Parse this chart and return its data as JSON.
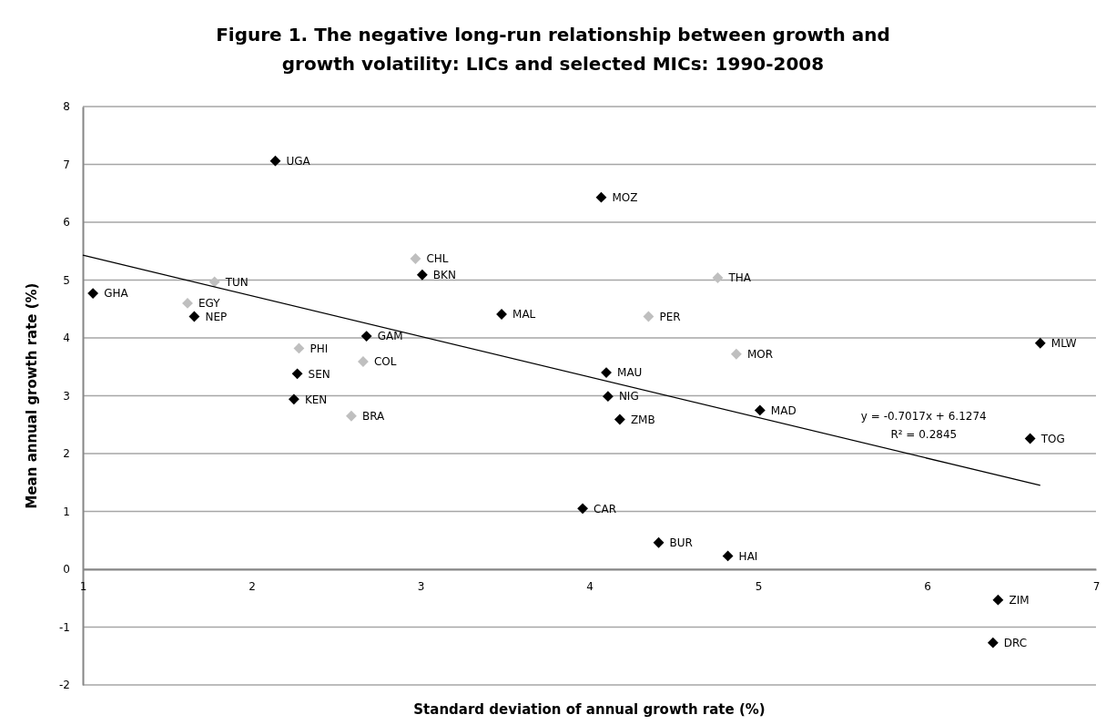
{
  "chart_data": {
    "type": "scatter",
    "title": "Figure 1. The negative long-run relationship between growth and growth volatility: LICs and selected MICs: 1990-2008",
    "xlabel": "Standard deviation of annual growth rate (%)",
    "ylabel": "Mean annual growth rate (%)",
    "xlim": [
      1,
      7
    ],
    "xticks": [
      1,
      2,
      3,
      4,
      5,
      6,
      7
    ],
    "ylim": [
      -2,
      8
    ],
    "yticks": [
      -2,
      -1,
      0,
      1,
      2,
      3,
      4,
      5,
      6,
      7,
      8
    ],
    "grid": "y",
    "series": [
      {
        "marker": "diamond",
        "color": "#000000",
        "x": [
          1.06,
          1.66,
          2.14,
          2.27,
          2.25,
          2.68,
          3.01,
          3.48,
          4.07,
          4.1,
          4.11,
          4.18,
          5.01,
          6.67,
          6.61,
          6.42,
          6.39,
          3.96,
          4.41,
          4.82
        ],
        "values": [
          4.77,
          4.37,
          7.06,
          3.38,
          2.94,
          4.03,
          5.09,
          4.41,
          6.43,
          3.4,
          2.99,
          2.59,
          2.75,
          3.91,
          2.26,
          -0.53,
          -1.27,
          1.05,
          0.46,
          0.23
        ]
      },
      {
        "marker": "diamond",
        "color": "#bfbfbf",
        "x": [
          1.78,
          1.62,
          2.28,
          2.66,
          2.59,
          2.97,
          4.35,
          4.76,
          4.87
        ],
        "values": [
          4.97,
          4.6,
          3.82,
          3.59,
          2.65,
          5.37,
          4.37,
          5.04,
          3.72
        ]
      },
      {
        "type": "line",
        "marker": "none",
        "line_style": "solid",
        "color": "#000000",
        "x": [
          1.0,
          6.67
        ],
        "values": [
          5.43,
          1.45
        ]
      }
    ],
    "annotations": [
      {
        "text": "GHA",
        "x": 1.06,
        "y": 4.77
      },
      {
        "text": "NEP",
        "x": 1.66,
        "y": 4.37
      },
      {
        "text": "UGA",
        "x": 2.14,
        "y": 7.06
      },
      {
        "text": "SEN",
        "x": 2.27,
        "y": 3.38
      },
      {
        "text": "KEN",
        "x": 2.25,
        "y": 2.94
      },
      {
        "text": "GAM",
        "x": 2.68,
        "y": 4.03
      },
      {
        "text": "BKN",
        "x": 3.01,
        "y": 5.09
      },
      {
        "text": "MAL",
        "x": 3.48,
        "y": 4.41
      },
      {
        "text": "MOZ",
        "x": 4.07,
        "y": 6.43
      },
      {
        "text": "MAU",
        "x": 4.1,
        "y": 3.4
      },
      {
        "text": "NIG",
        "x": 4.11,
        "y": 2.99
      },
      {
        "text": "ZMB",
        "x": 4.18,
        "y": 2.59
      },
      {
        "text": "MAD",
        "x": 5.01,
        "y": 2.75
      },
      {
        "text": "MLW",
        "x": 6.67,
        "y": 3.91
      },
      {
        "text": "TOG",
        "x": 6.61,
        "y": 2.26
      },
      {
        "text": "ZIM",
        "x": 6.42,
        "y": -0.53
      },
      {
        "text": "DRC",
        "x": 6.39,
        "y": -1.27
      },
      {
        "text": "CAR",
        "x": 3.96,
        "y": 1.05
      },
      {
        "text": "BUR",
        "x": 4.41,
        "y": 0.46
      },
      {
        "text": "HAI",
        "x": 4.82,
        "y": 0.23
      },
      {
        "text": "TUN",
        "x": 1.78,
        "y": 4.97
      },
      {
        "text": "EGY",
        "x": 1.62,
        "y": 4.6
      },
      {
        "text": "PHI",
        "x": 2.28,
        "y": 3.82
      },
      {
        "text": "COL",
        "x": 2.66,
        "y": 3.59
      },
      {
        "text": "BRA",
        "x": 2.59,
        "y": 2.65
      },
      {
        "text": "CHL",
        "x": 2.97,
        "y": 5.37
      },
      {
        "text": "PER",
        "x": 4.35,
        "y": 4.37
      },
      {
        "text": "THA",
        "x": 4.76,
        "y": 5.04
      },
      {
        "text": "MOR",
        "x": 4.87,
        "y": 3.72
      },
      "y = -0.7017x + 6.1274",
      "R² = 0.2845"
    ]
  }
}
